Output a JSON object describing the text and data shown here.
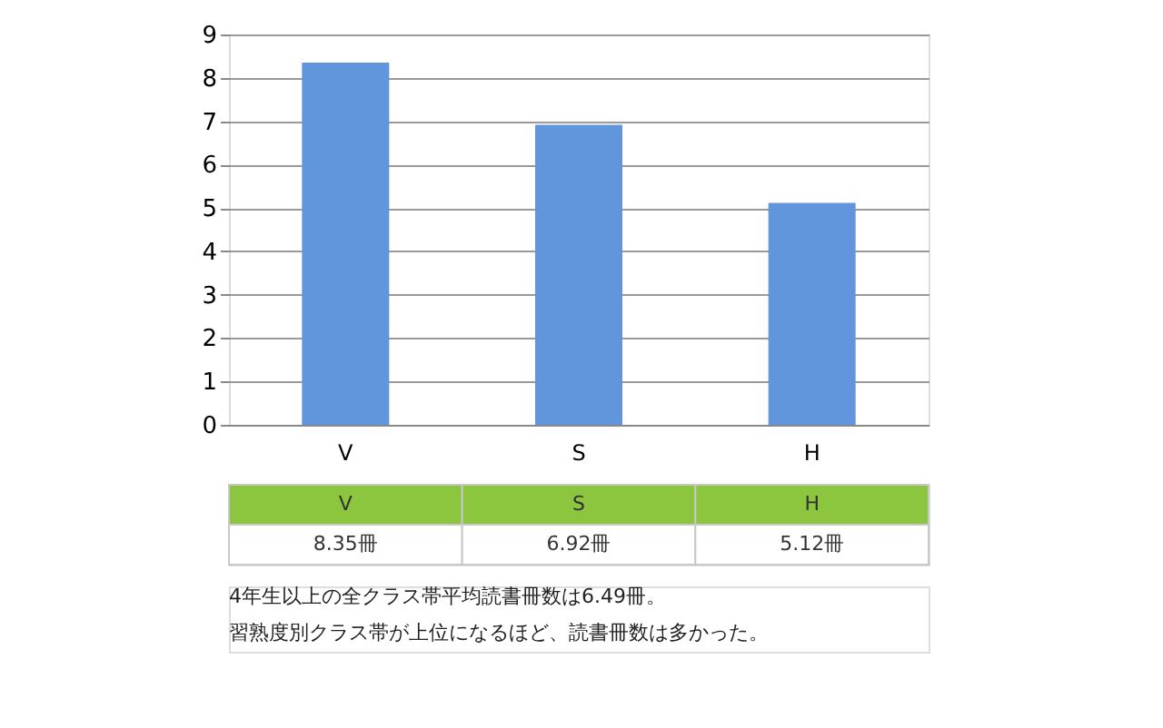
{
  "chart_data": {
    "type": "bar",
    "categories": [
      "V",
      "S",
      "H"
    ],
    "values": [
      8.35,
      6.92,
      5.12
    ],
    "value_labels": [
      "8.35冊",
      "6.92冊",
      "5.12冊"
    ],
    "color": "#6196dc",
    "ylim": [
      0,
      9
    ],
    "yticks": [
      0,
      1,
      2,
      3,
      4,
      5,
      6,
      7,
      8,
      9
    ],
    "grid": "y",
    "annotations": [
      "4年生以上の全クラス帯平均読書冊数は6.49冊。",
      "習熟度別クラス帯が上位になるほど、読書冊数は多かった。"
    ]
  }
}
